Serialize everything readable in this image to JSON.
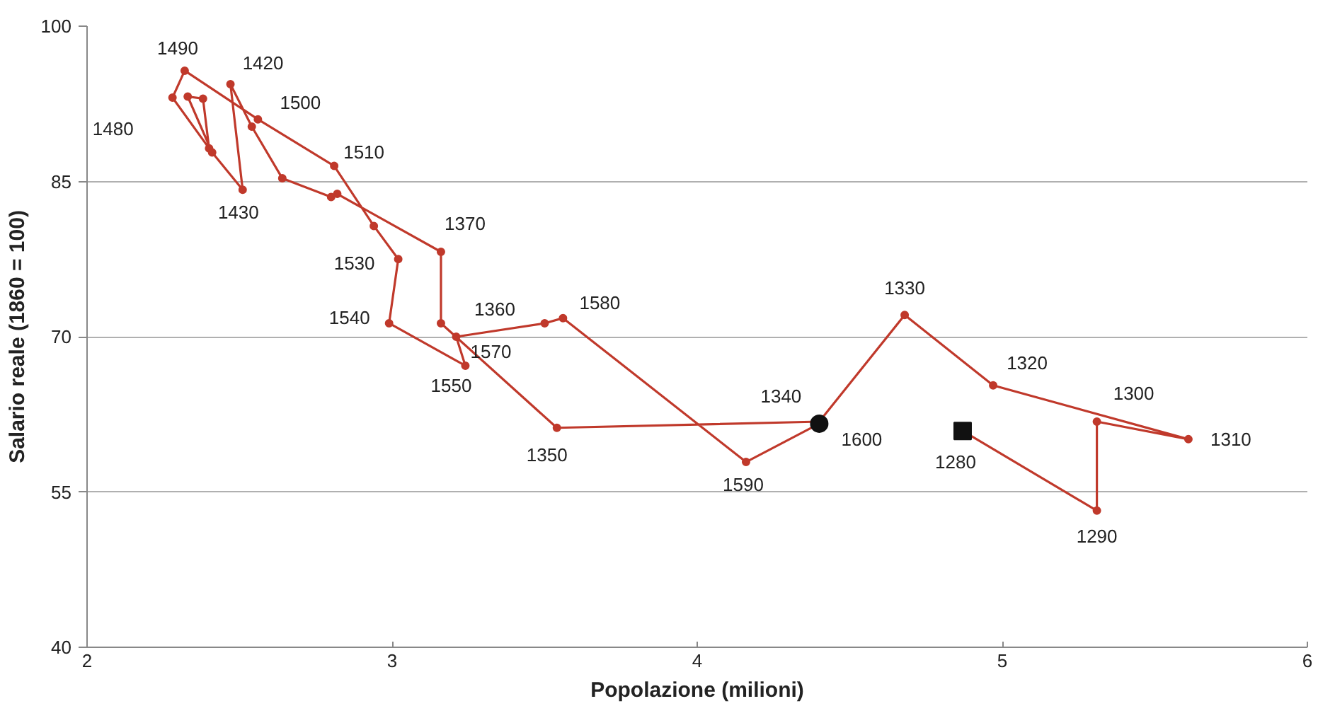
{
  "chart_data": {
    "type": "line",
    "xlabel": "Popolazione (milioni)",
    "ylabel": "Salario reale (1860 = 100)",
    "xlim": [
      2,
      6
    ],
    "xticks": [
      2,
      3,
      4,
      5,
      6
    ],
    "ylim": [
      40,
      100
    ],
    "yticks": [
      40,
      55,
      70,
      85,
      100
    ],
    "grid": "y",
    "marker": "circle",
    "line_style": "solid",
    "series": [
      {
        "color": "#c0392b",
        "x": [
          4.87,
          5.31,
          5.31,
          5.61,
          4.97,
          4.68,
          4.4,
          3.54,
          3.16,
          3.16,
          2.82,
          2.8,
          2.64,
          2.54,
          2.47,
          2.51,
          2.41,
          2.33,
          2.38,
          2.4,
          2.28,
          2.32,
          2.56,
          2.81,
          2.94,
          3.02,
          2.99,
          3.24,
          3.21,
          3.5,
          3.56,
          4.16,
          4.4
        ],
        "values": [
          60.9,
          53.2,
          61.8,
          60.1,
          65.3,
          72.1,
          61.8,
          61.2,
          71.3,
          78.2,
          83.8,
          83.5,
          85.3,
          90.3,
          94.4,
          84.2,
          87.8,
          93.2,
          93.0,
          88.2,
          93.1,
          95.7,
          91.0,
          86.5,
          80.7,
          77.5,
          71.3,
          67.2,
          70.0,
          71.3,
          71.8,
          57.9,
          61.6
        ]
      },
      {
        "type": "scatter",
        "color": "#111111",
        "marker": "square",
        "x": [
          4.87
        ],
        "values": [
          60.9
        ]
      },
      {
        "type": "scatter",
        "color": "#111111",
        "marker": "circle",
        "x": [
          4.4
        ],
        "values": [
          61.6
        ]
      }
    ],
    "annotations": [
      {
        "text": "1280",
        "x": 4.87,
        "y": 60.9
      },
      {
        "text": "1290",
        "x": 5.31,
        "y": 53.2
      },
      {
        "text": "1300",
        "x": 5.31,
        "y": 61.8
      },
      {
        "text": "1310",
        "x": 5.61,
        "y": 60.1
      },
      {
        "text": "1320",
        "x": 4.97,
        "y": 65.3
      },
      {
        "text": "1330",
        "x": 4.68,
        "y": 72.1
      },
      {
        "text": "1340",
        "x": 4.4,
        "y": 61.8
      },
      {
        "text": "1350",
        "x": 3.54,
        "y": 61.2
      },
      {
        "text": "1360",
        "x": 3.16,
        "y": 71.3
      },
      {
        "text": "1370",
        "x": 3.16,
        "y": 78.2
      },
      {
        "text": "1420",
        "x": 2.47,
        "y": 94.4
      },
      {
        "text": "1430",
        "x": 2.51,
        "y": 84.2
      },
      {
        "text": "1480",
        "x": 2.28,
        "y": 93.1
      },
      {
        "text": "1490",
        "x": 2.32,
        "y": 95.7
      },
      {
        "text": "1500",
        "x": 2.56,
        "y": 91.0
      },
      {
        "text": "1510",
        "x": 2.81,
        "y": 86.5
      },
      {
        "text": "1530",
        "x": 3.02,
        "y": 77.5
      },
      {
        "text": "1540",
        "x": 2.99,
        "y": 71.3
      },
      {
        "text": "1550",
        "x": 3.24,
        "y": 67.2
      },
      {
        "text": "1570",
        "x": 3.5,
        "y": 71.3
      },
      {
        "text": "1580",
        "x": 3.56,
        "y": 71.8
      },
      {
        "text": "1590",
        "x": 4.16,
        "y": 57.9
      },
      {
        "text": "1600",
        "x": 4.4,
        "y": 61.6
      }
    ]
  }
}
